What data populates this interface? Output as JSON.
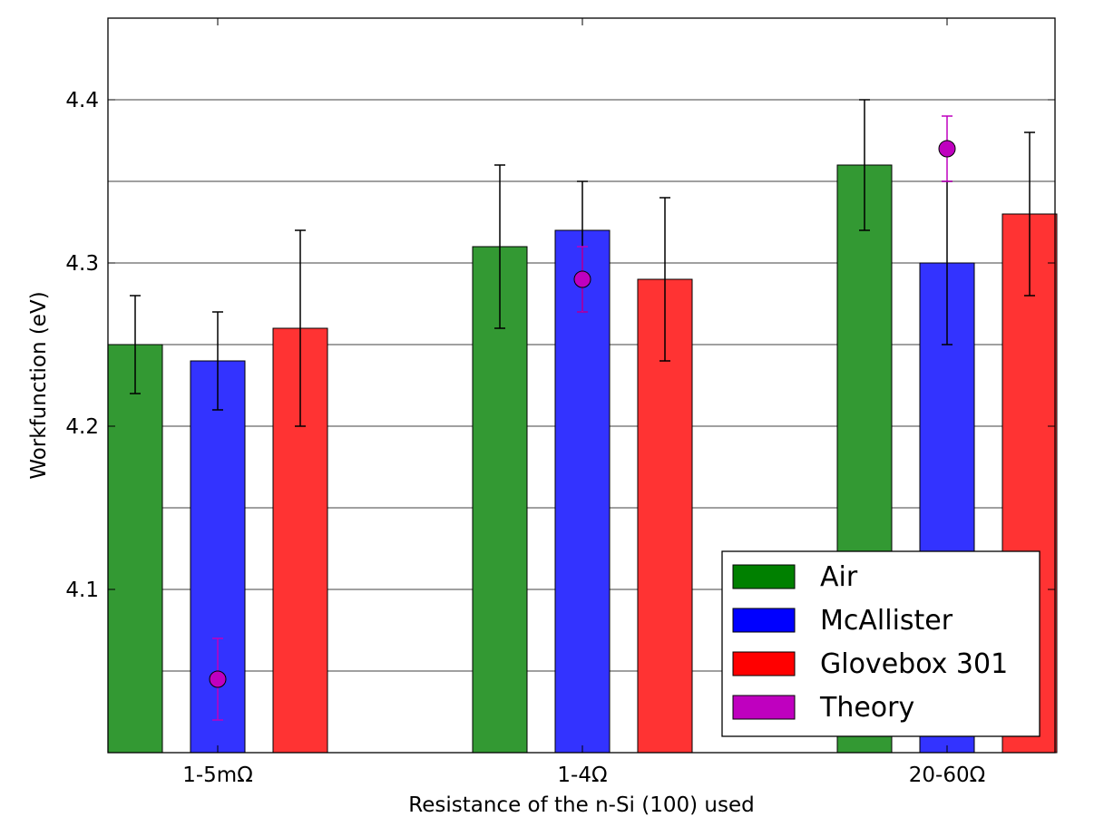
{
  "chart_data": {
    "type": "bar",
    "title": "",
    "xlabel": "Resistance of the n-Si (100) used",
    "ylabel": "Workfunction (eV)",
    "categories": [
      "1-5mΩ",
      "1-4Ω",
      "20-60Ω"
    ],
    "ylim": [
      4.0,
      4.45
    ],
    "yticks": [
      4.1,
      4.2,
      4.3,
      4.4
    ],
    "ytick_labels": [
      "4.1",
      "4.2",
      "4.3",
      "4.4"
    ],
    "gridlines_y": [
      4.05,
      4.1,
      4.15,
      4.2,
      4.25,
      4.3,
      4.35,
      4.4
    ],
    "grid": true,
    "legend_position": "bottom-right",
    "series": [
      {
        "name": "Air",
        "kind": "bar",
        "color": "#339933",
        "legend_color": "#008000",
        "values": [
          4.25,
          4.31,
          4.36
        ],
        "err_low": [
          4.22,
          4.26,
          4.32
        ],
        "err_high": [
          4.28,
          4.36,
          4.4
        ]
      },
      {
        "name": "McAllister",
        "kind": "bar",
        "color": "#3333ff",
        "legend_color": "#0000ff",
        "values": [
          4.24,
          4.32,
          4.3
        ],
        "err_low": [
          4.21,
          4.27,
          4.25
        ],
        "err_high": [
          4.27,
          4.35,
          4.35
        ]
      },
      {
        "name": "Glovebox 301",
        "kind": "bar",
        "color": "#ff3333",
        "legend_color": "#ff0000",
        "values": [
          4.26,
          4.29,
          4.33
        ],
        "err_low": [
          4.2,
          4.24,
          4.28
        ],
        "err_high": [
          4.32,
          4.34,
          4.38
        ]
      },
      {
        "name": "Theory",
        "kind": "point",
        "color": "#bf00bf",
        "legend_color": "#bf00bf",
        "values": [
          4.045,
          4.29,
          4.37
        ],
        "err_low": [
          4.02,
          4.27,
          4.35
        ],
        "err_high": [
          4.07,
          4.31,
          4.39
        ]
      }
    ]
  }
}
